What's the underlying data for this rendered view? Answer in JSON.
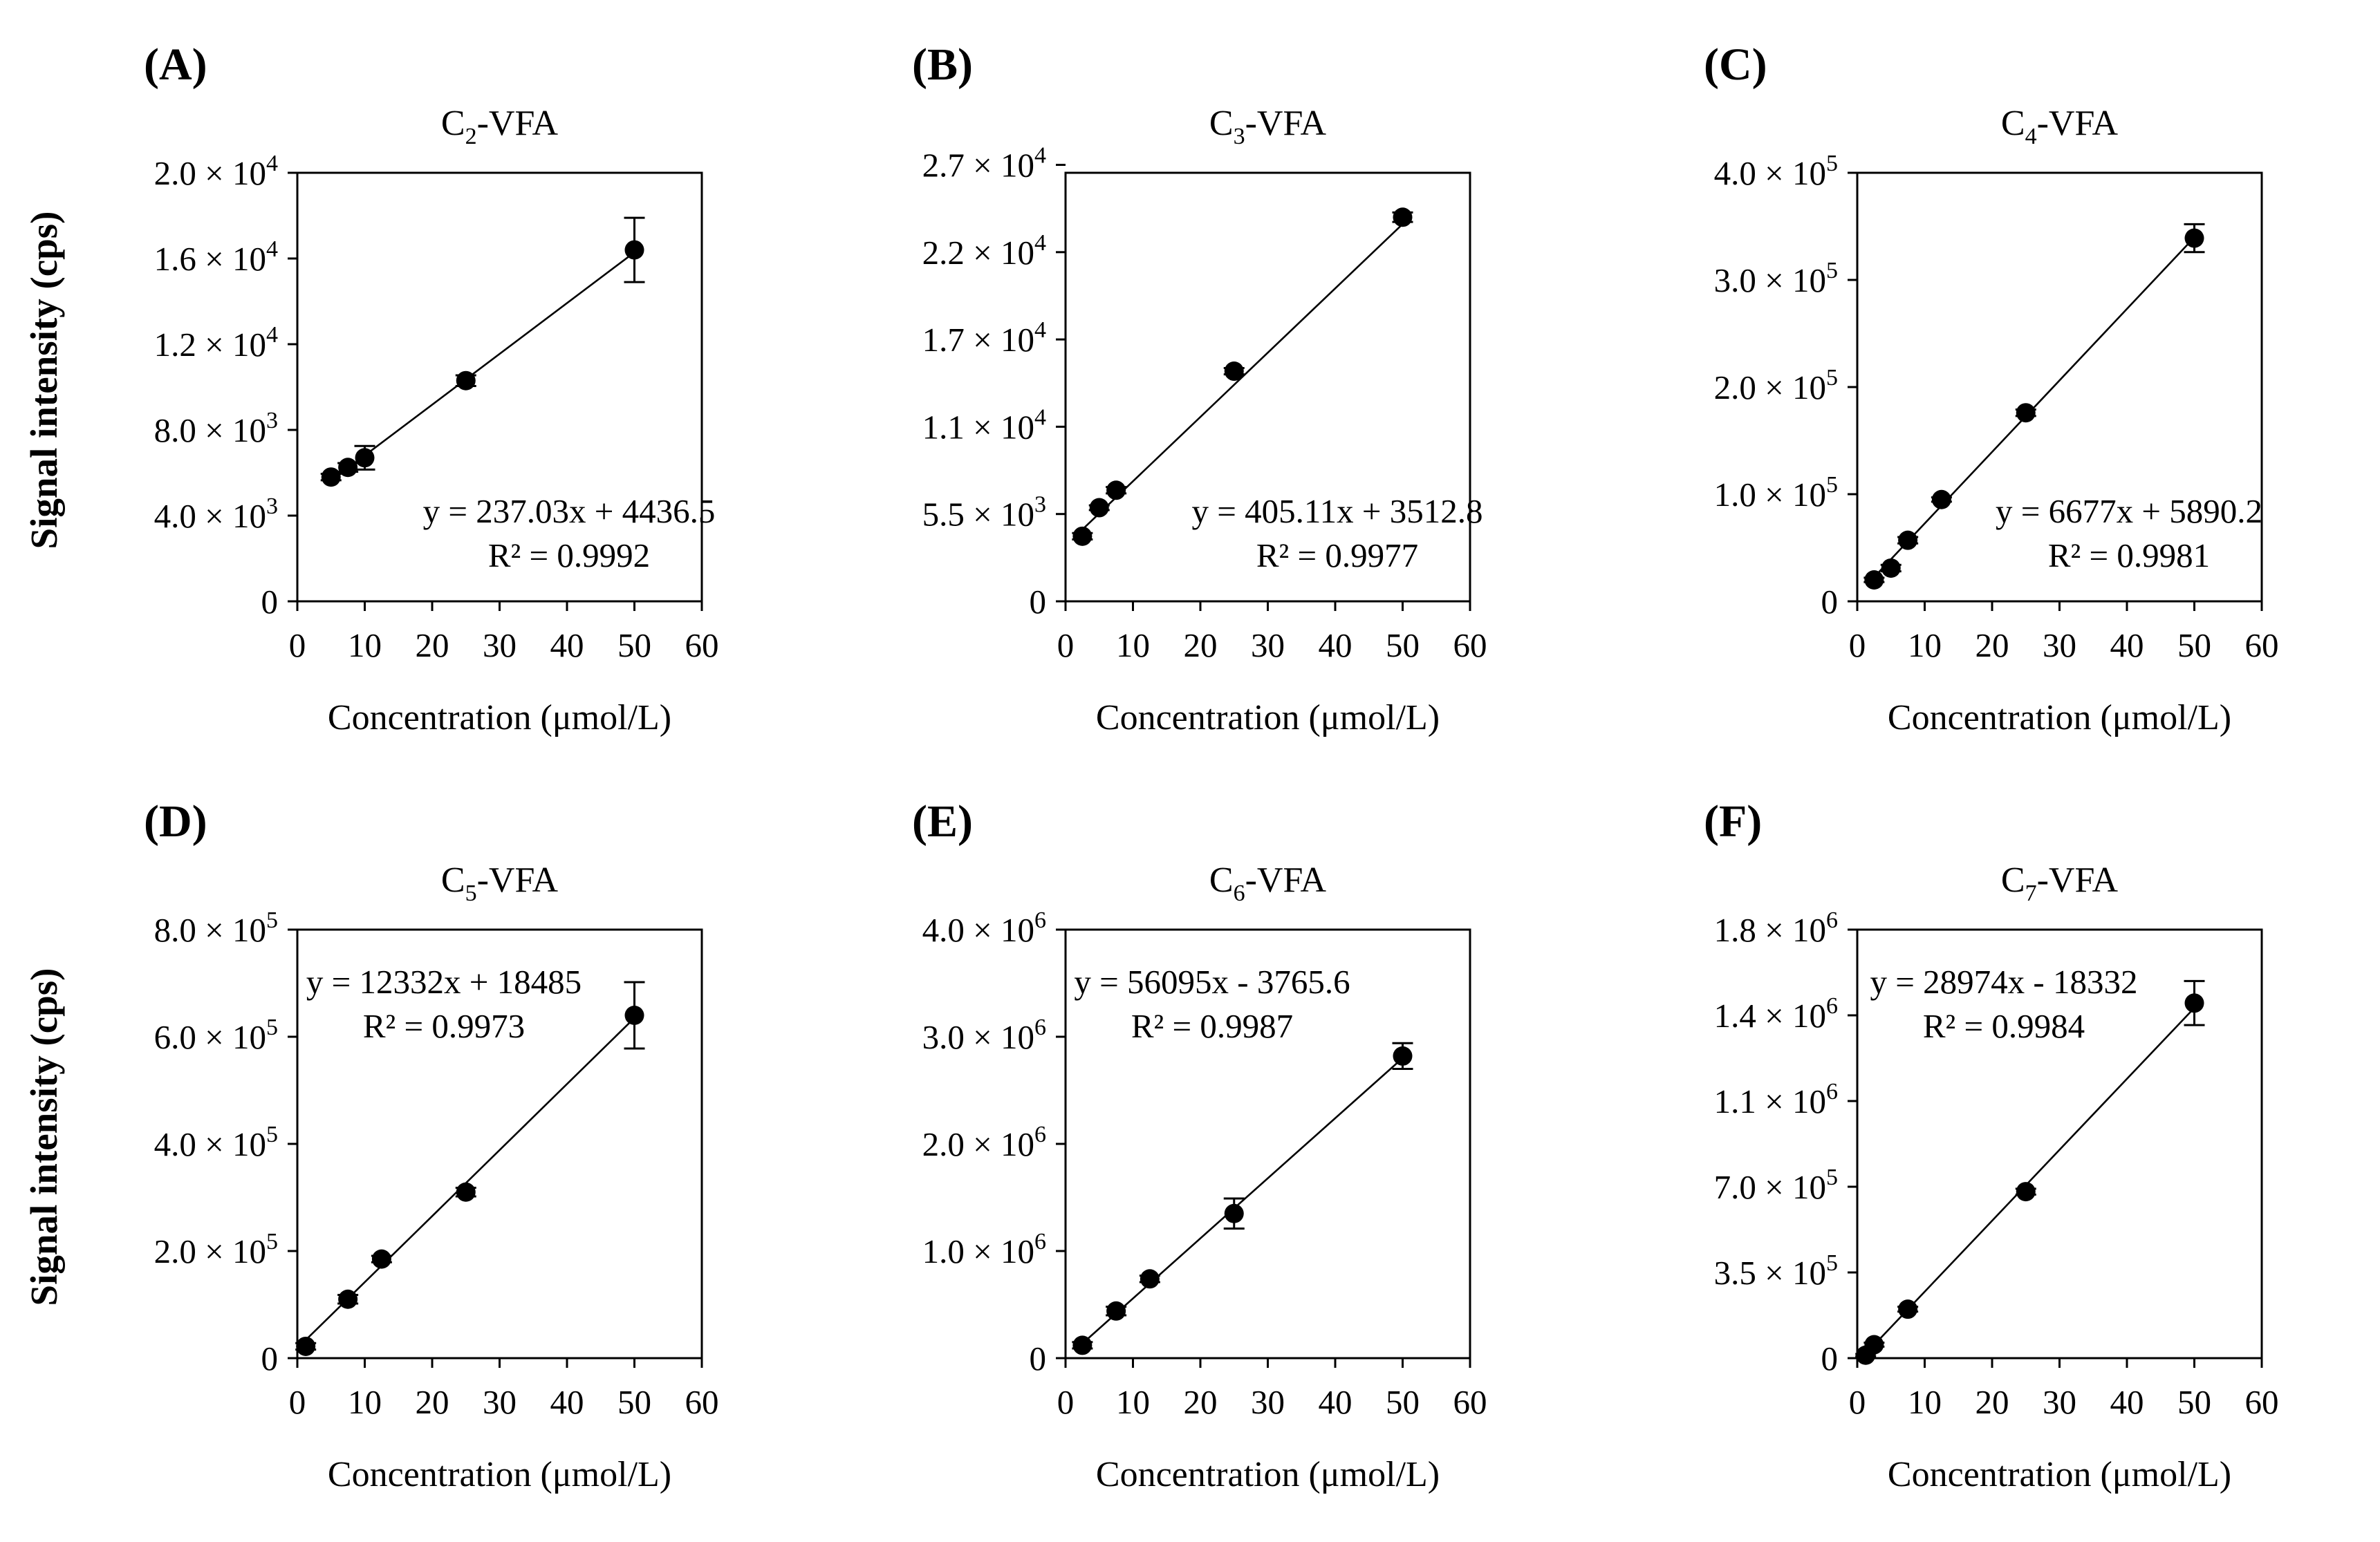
{
  "chart_data": [
    {
      "type": "scatter",
      "panel_label": "(A)",
      "title": {
        "prefix": "C",
        "sub": "2",
        "suffix": "-VFA"
      },
      "xlabel": "Concentration (μmol/L)",
      "ylabel": "Signal intensity (cps)",
      "xlim": [
        0,
        60
      ],
      "xticks": [
        0,
        10,
        20,
        30,
        40,
        50,
        60
      ],
      "ylim": [
        0,
        20000
      ],
      "yticks": [
        {
          "value": 0,
          "label": "0"
        },
        {
          "value": 4000,
          "mantissa": "4.0",
          "exp": "3"
        },
        {
          "value": 8000,
          "mantissa": "8.0",
          "exp": "3"
        },
        {
          "value": 12000,
          "mantissa": "1.2",
          "exp": "4"
        },
        {
          "value": 16000,
          "mantissa": "1.6",
          "exp": "4"
        },
        {
          "value": 20000,
          "mantissa": "2.0",
          "exp": "4"
        }
      ],
      "points": [
        {
          "x": 5,
          "y": 5800,
          "err": 150
        },
        {
          "x": 7.5,
          "y": 6250,
          "err": 200
        },
        {
          "x": 10,
          "y": 6700,
          "err": 550
        },
        {
          "x": 25,
          "y": 10300,
          "err": 250
        },
        {
          "x": 50,
          "y": 16400,
          "err": 1500
        }
      ],
      "fit": {
        "slope": 237.03,
        "intercept": 4436.5,
        "x_range": [
          5,
          50
        ]
      },
      "equation": "y = 237.03x + 4436.5",
      "r2": "R² = 0.9992",
      "eq_position": "lower-right"
    },
    {
      "type": "scatter",
      "panel_label": "(B)",
      "title": {
        "prefix": "C",
        "sub": "3",
        "suffix": "-VFA"
      },
      "xlabel": "Concentration (μmol/L)",
      "xlim": [
        0,
        60
      ],
      "xticks": [
        0,
        10,
        20,
        30,
        40,
        50,
        60
      ],
      "ylim": [
        0,
        27000
      ],
      "yticks": [
        {
          "value": 0,
          "label": "0"
        },
        {
          "value": 5500,
          "mantissa": "5.5",
          "exp": "3"
        },
        {
          "value": 11000,
          "mantissa": "1.1",
          "exp": "4"
        },
        {
          "value": 16500,
          "mantissa": "1.7",
          "exp": "4"
        },
        {
          "value": 22000,
          "mantissa": "2.2",
          "exp": "4"
        },
        {
          "value": 27500,
          "mantissa": "2.7",
          "exp": "4"
        }
      ],
      "points": [
        {
          "x": 2.5,
          "y": 4100,
          "err": 200
        },
        {
          "x": 5,
          "y": 5900,
          "err": 150
        },
        {
          "x": 7.5,
          "y": 7000,
          "err": 200
        },
        {
          "x": 25,
          "y": 14500,
          "err": 200
        },
        {
          "x": 50,
          "y": 24200,
          "err": 300
        }
      ],
      "fit": {
        "slope": 405.11,
        "intercept": 3512.8,
        "x_range": [
          2.5,
          50
        ]
      },
      "equation": "y = 405.11x + 3512.8",
      "r2": "R² = 0.9977",
      "eq_position": "lower-right"
    },
    {
      "type": "scatter",
      "panel_label": "(C)",
      "title": {
        "prefix": "C",
        "sub": "4",
        "suffix": "-VFA"
      },
      "xlabel": "Concentration (μmol/L)",
      "xlim": [
        0,
        60
      ],
      "xticks": [
        0,
        10,
        20,
        30,
        40,
        50,
        60
      ],
      "ylim": [
        0,
        400000
      ],
      "yticks": [
        {
          "value": 0,
          "label": "0"
        },
        {
          "value": 100000,
          "mantissa": "1.0",
          "exp": "5"
        },
        {
          "value": 200000,
          "mantissa": "2.0",
          "exp": "5"
        },
        {
          "value": 300000,
          "mantissa": "3.0",
          "exp": "5"
        },
        {
          "value": 400000,
          "mantissa": "4.0",
          "exp": "5"
        }
      ],
      "points": [
        {
          "x": 2.5,
          "y": 20000,
          "err": 2000
        },
        {
          "x": 5,
          "y": 31000,
          "err": 3000
        },
        {
          "x": 7.5,
          "y": 57000,
          "err": 3000
        },
        {
          "x": 12.5,
          "y": 95000,
          "err": 2000
        },
        {
          "x": 25,
          "y": 176000,
          "err": 3000
        },
        {
          "x": 50,
          "y": 339000,
          "err": 13000
        }
      ],
      "fit": {
        "slope": 6677,
        "intercept": 5890.2,
        "x_range": [
          2.5,
          50
        ]
      },
      "equation": "y = 6677x + 5890.2",
      "r2": "R² = 0.9981",
      "eq_position": "lower-right"
    },
    {
      "type": "scatter",
      "panel_label": "(D)",
      "title": {
        "prefix": "C",
        "sub": "5",
        "suffix": "-VFA"
      },
      "xlabel": "Concentration (μmol/L)",
      "ylabel": "Signal intensity (cps)",
      "xlim": [
        0,
        60
      ],
      "xticks": [
        0,
        10,
        20,
        30,
        40,
        50,
        60
      ],
      "ylim": [
        0,
        800000
      ],
      "yticks": [
        {
          "value": 0,
          "label": "0"
        },
        {
          "value": 200000,
          "mantissa": "2.0",
          "exp": "5"
        },
        {
          "value": 400000,
          "mantissa": "4.0",
          "exp": "5"
        },
        {
          "value": 600000,
          "mantissa": "6.0",
          "exp": "5"
        },
        {
          "value": 800000,
          "mantissa": "8.0",
          "exp": "5"
        }
      ],
      "points": [
        {
          "x": 1.25,
          "y": 22000,
          "err": 6000
        },
        {
          "x": 7.5,
          "y": 110000,
          "err": 8000
        },
        {
          "x": 12.5,
          "y": 185000,
          "err": 6000
        },
        {
          "x": 25,
          "y": 310000,
          "err": 8000
        },
        {
          "x": 50,
          "y": 640000,
          "err": 62000
        }
      ],
      "fit": {
        "slope": 12332,
        "intercept": 18485,
        "x_range": [
          1.25,
          50
        ]
      },
      "equation": "y = 12332x + 18485",
      "r2": "R² = 0.9973",
      "eq_position": "upper-left"
    },
    {
      "type": "scatter",
      "panel_label": "(E)",
      "title": {
        "prefix": "C",
        "sub": "6",
        "suffix": "-VFA"
      },
      "xlabel": "Concentration (μmol/L)",
      "xlim": [
        0,
        60
      ],
      "xticks": [
        0,
        10,
        20,
        30,
        40,
        50,
        60
      ],
      "ylim": [
        0,
        4000000
      ],
      "yticks": [
        {
          "value": 0,
          "label": "0"
        },
        {
          "value": 1000000,
          "mantissa": "1.0",
          "exp": "6"
        },
        {
          "value": 2000000,
          "mantissa": "2.0",
          "exp": "6"
        },
        {
          "value": 3000000,
          "mantissa": "3.0",
          "exp": "6"
        },
        {
          "value": 4000000,
          "mantissa": "4.0",
          "exp": "6"
        }
      ],
      "points": [
        {
          "x": 2.5,
          "y": 120000,
          "err": 30000
        },
        {
          "x": 7.5,
          "y": 440000,
          "err": 40000
        },
        {
          "x": 12.5,
          "y": 740000,
          "err": 30000
        },
        {
          "x": 25,
          "y": 1350000,
          "err": 140000
        },
        {
          "x": 50,
          "y": 2820000,
          "err": 120000
        }
      ],
      "fit": {
        "slope": 56095,
        "intercept": -3765.6,
        "x_range": [
          2.5,
          50
        ]
      },
      "equation": "y = 56095x - 3765.6",
      "r2": "R² = 0.9987",
      "eq_position": "upper-left"
    },
    {
      "type": "scatter",
      "panel_label": "(F)",
      "title": {
        "prefix": "C",
        "sub": "7",
        "suffix": "-VFA"
      },
      "xlabel": "Concentration (μmol/L)",
      "xlim": [
        0,
        60
      ],
      "xticks": [
        0,
        10,
        20,
        30,
        40,
        50,
        60
      ],
      "ylim": [
        0,
        1750000
      ],
      "yticks": [
        {
          "value": 0,
          "label": "0"
        },
        {
          "value": 350000,
          "mantissa": "3.5",
          "exp": "5"
        },
        {
          "value": 700000,
          "mantissa": "7.0",
          "exp": "5"
        },
        {
          "value": 1050000,
          "mantissa": "1.1",
          "exp": "6"
        },
        {
          "value": 1400000,
          "mantissa": "1.4",
          "exp": "6"
        },
        {
          "value": 1750000,
          "mantissa": "1.8",
          "exp": "6"
        }
      ],
      "points": [
        {
          "x": 1.25,
          "y": 12000,
          "err": 5000
        },
        {
          "x": 2.5,
          "y": 55000,
          "err": 8000
        },
        {
          "x": 7.5,
          "y": 200000,
          "err": 10000
        },
        {
          "x": 25,
          "y": 680000,
          "err": 12000
        },
        {
          "x": 50,
          "y": 1450000,
          "err": 90000
        }
      ],
      "fit": {
        "slope": 28974,
        "intercept": -18332,
        "x_range": [
          1.25,
          50
        ]
      },
      "equation": "y = 28974x - 18332",
      "r2": "R² = 0.9984",
      "eq_position": "upper-left"
    }
  ]
}
